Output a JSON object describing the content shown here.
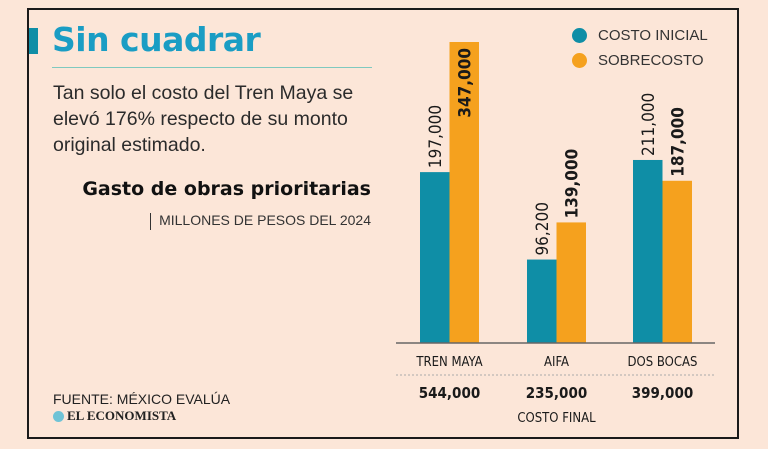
{
  "header": {
    "title": "Sin cuadrar",
    "description": "Tan solo el costo del Tren Maya se elevó 176% respecto de su monto original estimado.",
    "subtitle": "Gasto de obras prioritarias",
    "units": "MILLONES DE PESOS DEL 2024"
  },
  "footer": {
    "source": "FUENTE: MÉXICO EVALÚA",
    "brand": "EL ECONOMISTA"
  },
  "colors": {
    "costo_inicial": "#0f8ea6",
    "sobrecosto": "#f5a11e",
    "title": "#1a9dc4"
  },
  "chart_data": {
    "type": "bar",
    "title": "Gasto de obras prioritarias",
    "subtitle": "MILLONES DE PESOS DEL 2024",
    "categories": [
      "TREN MAYA",
      "AIFA",
      "DOS BOCAS"
    ],
    "series": [
      {
        "name": "COSTO INICIAL",
        "values": [
          197000,
          96200,
          211000
        ],
        "labels": [
          "197,000",
          "96,200",
          "211,000"
        ]
      },
      {
        "name": "SOBRECOSTO",
        "values": [
          347000,
          139000,
          187000
        ],
        "labels": [
          "347,000",
          "139,000",
          "187,000"
        ]
      }
    ],
    "totals": {
      "label": "COSTO FINAL",
      "values": [
        "544,000",
        "235,000",
        "399,000"
      ]
    },
    "legend_position": "top-right",
    "ylim": [
      0,
      355000
    ],
    "grid": false
  }
}
